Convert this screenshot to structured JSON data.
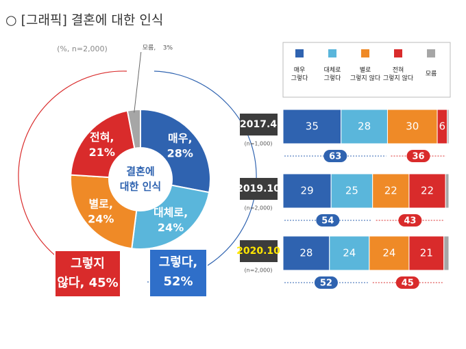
{
  "title": "○ [그래픽] 결혼에 대한 인식",
  "chart_data": [
    {
      "type": "pie",
      "note": "(%, n=2,000)",
      "center_label": [
        "결혼에",
        "대한 인식"
      ],
      "categories": [
        "매우,",
        "대체로,",
        "별로,",
        "전혀,",
        "모름,"
      ],
      "values": [
        28,
        24,
        24,
        21,
        3
      ],
      "value_labels": [
        "28%",
        "24%",
        "24%",
        "21%",
        "3%"
      ],
      "colors": [
        "#2f63b0",
        "#5ab6db",
        "#ef8a27",
        "#d92b2b",
        "#a6a6a6"
      ],
      "callouts": [
        {
          "lines": [
            "그렇다,",
            "52%"
          ],
          "color": "#2f6fc9"
        },
        {
          "lines": [
            "그렇지",
            "않다, 45%"
          ],
          "color": "#d92b2b"
        }
      ]
    },
    {
      "type": "bar",
      "orientation": "horizontal",
      "stacked": true,
      "categories": [
        "2017.4",
        "2019.10",
        "2020.10"
      ],
      "sample_sizes": [
        "(n=1,000)",
        "(n=2,000)",
        "(n=2,000)"
      ],
      "category_label_colors": [
        "#ffffff",
        "#ffffff",
        "#ffe600"
      ],
      "xlim": [
        0,
        100
      ],
      "series": [
        {
          "name": "매우 그렇다",
          "color": "#2f63b0",
          "values": [
            35,
            29,
            28
          ]
        },
        {
          "name": "대체로 그렇다",
          "color": "#5ab6db",
          "values": [
            28,
            25,
            24
          ]
        },
        {
          "name": "별로 그렇지 않다",
          "color": "#ef8a27",
          "values": [
            30,
            22,
            24
          ]
        },
        {
          "name": "전혀 그렇지 않다",
          "color": "#d92b2b",
          "values": [
            6,
            22,
            21
          ]
        },
        {
          "name": "모름",
          "color": "#a6a6a6",
          "values": [
            1,
            2,
            3
          ]
        }
      ],
      "positive_totals": [
        63,
        54,
        52
      ],
      "negative_totals": [
        36,
        43,
        45
      ]
    }
  ]
}
